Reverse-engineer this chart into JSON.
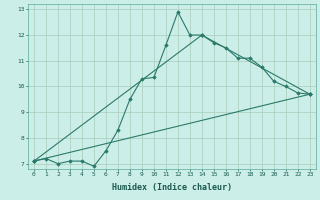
{
  "title": "",
  "xlabel": "Humidex (Indice chaleur)",
  "ylabel": "",
  "bg_color": "#cceee8",
  "grid_color": "#aaccbb",
  "line_color": "#2a7a6a",
  "marker_color": "#2a7a6a",
  "xlim": [
    -0.5,
    23.5
  ],
  "ylim": [
    6.8,
    13.2
  ],
  "xticks": [
    0,
    1,
    2,
    3,
    4,
    5,
    6,
    7,
    8,
    9,
    10,
    11,
    12,
    13,
    14,
    15,
    16,
    17,
    18,
    19,
    20,
    21,
    22,
    23
  ],
  "yticks": [
    7,
    8,
    9,
    10,
    11,
    12,
    13
  ],
  "line1_x": [
    0,
    1,
    2,
    3,
    4,
    5,
    6,
    7,
    8,
    9,
    10,
    11,
    12,
    13,
    14,
    15,
    16,
    17,
    18,
    19,
    20,
    21,
    22,
    23
  ],
  "line1_y": [
    7.1,
    7.2,
    7.0,
    7.1,
    7.1,
    6.9,
    7.5,
    8.3,
    9.5,
    10.3,
    10.35,
    11.6,
    12.9,
    12.0,
    12.0,
    11.7,
    11.5,
    11.1,
    11.1,
    10.75,
    10.2,
    10.0,
    9.75,
    9.7
  ],
  "line2_x": [
    0,
    23
  ],
  "line2_y": [
    7.1,
    9.7
  ],
  "line3_x": [
    0,
    14,
    23
  ],
  "line3_y": [
    7.1,
    12.0,
    9.7
  ]
}
